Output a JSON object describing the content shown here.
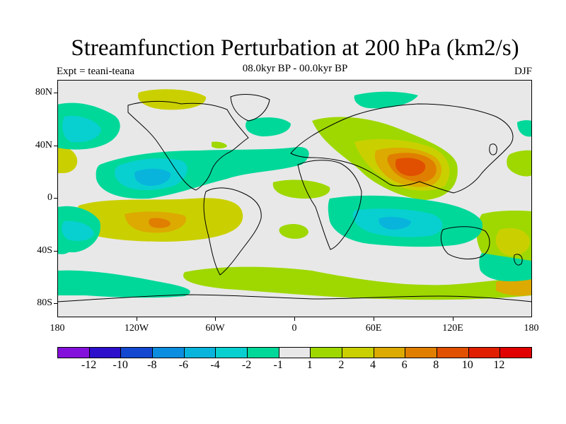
{
  "title": "Streamfunction Perturbation at 200 hPa (km2/s)",
  "subtitle": "08.0kyr BP - 00.0kyr BP",
  "left_label": "Expt = teani-teana",
  "right_label": "DJF",
  "axes": {
    "y_ticks": [
      "80N",
      "40N",
      "0",
      "40S",
      "80S"
    ],
    "x_ticks": [
      "180",
      "120W",
      "60W",
      "0",
      "60E",
      "120E",
      "180"
    ]
  },
  "colorbar": {
    "colors": [
      "#8410dc",
      "#2c10cc",
      "#1448d0",
      "#0c8ee0",
      "#08b4dc",
      "#08d0d0",
      "#00d89a",
      "#e8e8e8",
      "#9ed800",
      "#cad000",
      "#dcaa00",
      "#e07e00",
      "#e05000",
      "#e01e00",
      "#e00000"
    ],
    "labels": [
      "-12",
      "-10",
      "-8",
      "-6",
      "-4",
      "-2",
      "-1",
      "1",
      "2",
      "4",
      "6",
      "8",
      "10",
      "12"
    ]
  },
  "field_colors": {
    "neg1": "#00d89a",
    "neg2": "#08d0d0",
    "neg4": "#08b4dc",
    "pos1": "#9ed800",
    "pos2": "#cad000",
    "pos4": "#dcaa00",
    "pos6": "#e07e00",
    "pos8": "#e05000"
  }
}
